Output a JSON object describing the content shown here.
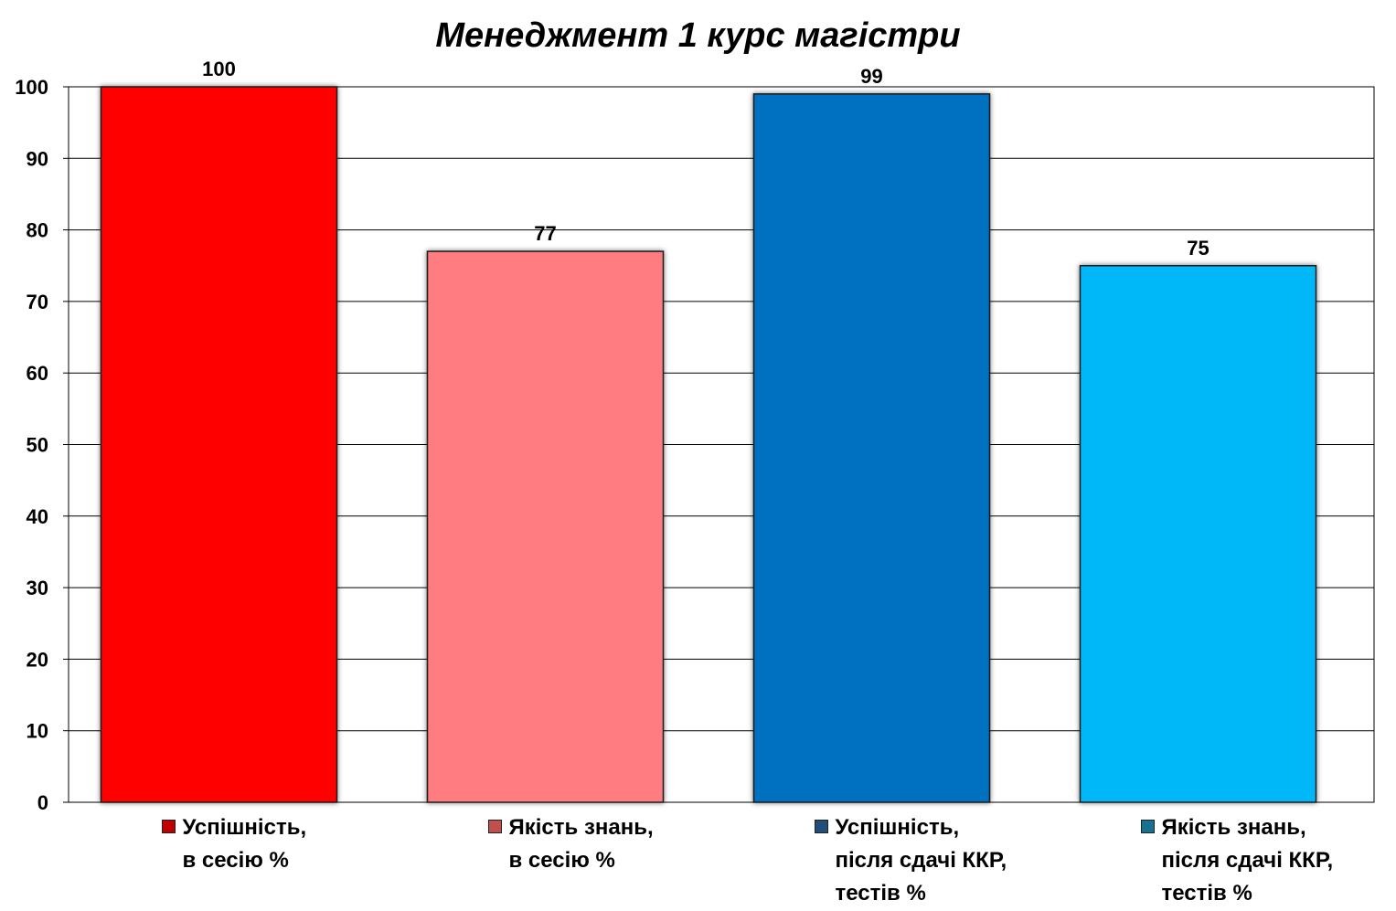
{
  "chart_data": {
    "type": "bar",
    "title": "Менеджмент 1 курс магістри",
    "xlabel": "",
    "ylabel": "",
    "ylim": [
      0,
      100
    ],
    "yticks": [
      0,
      10,
      20,
      30,
      40,
      50,
      60,
      70,
      80,
      90,
      100
    ],
    "grid": true,
    "legend_position": "bottom",
    "categories": [
      "Успішність,\nв сесію %",
      "Якість знань,\nв сесію %",
      "Успішність,\nпісля сдачі ККР,\nтестів %",
      "Якість знань,\nпісля сдачі ККР,\nтестів %"
    ],
    "values": [
      100,
      77,
      99,
      75
    ],
    "data_labels": [
      "100",
      "77",
      "99",
      "75"
    ],
    "colors": [
      "#ff0000",
      "#ff7c80",
      "#0070c0",
      "#00b8f8"
    ],
    "legend_swatch_colors": [
      "#c00000",
      "#c0504d",
      "#1f4e79",
      "#17728f"
    ]
  }
}
